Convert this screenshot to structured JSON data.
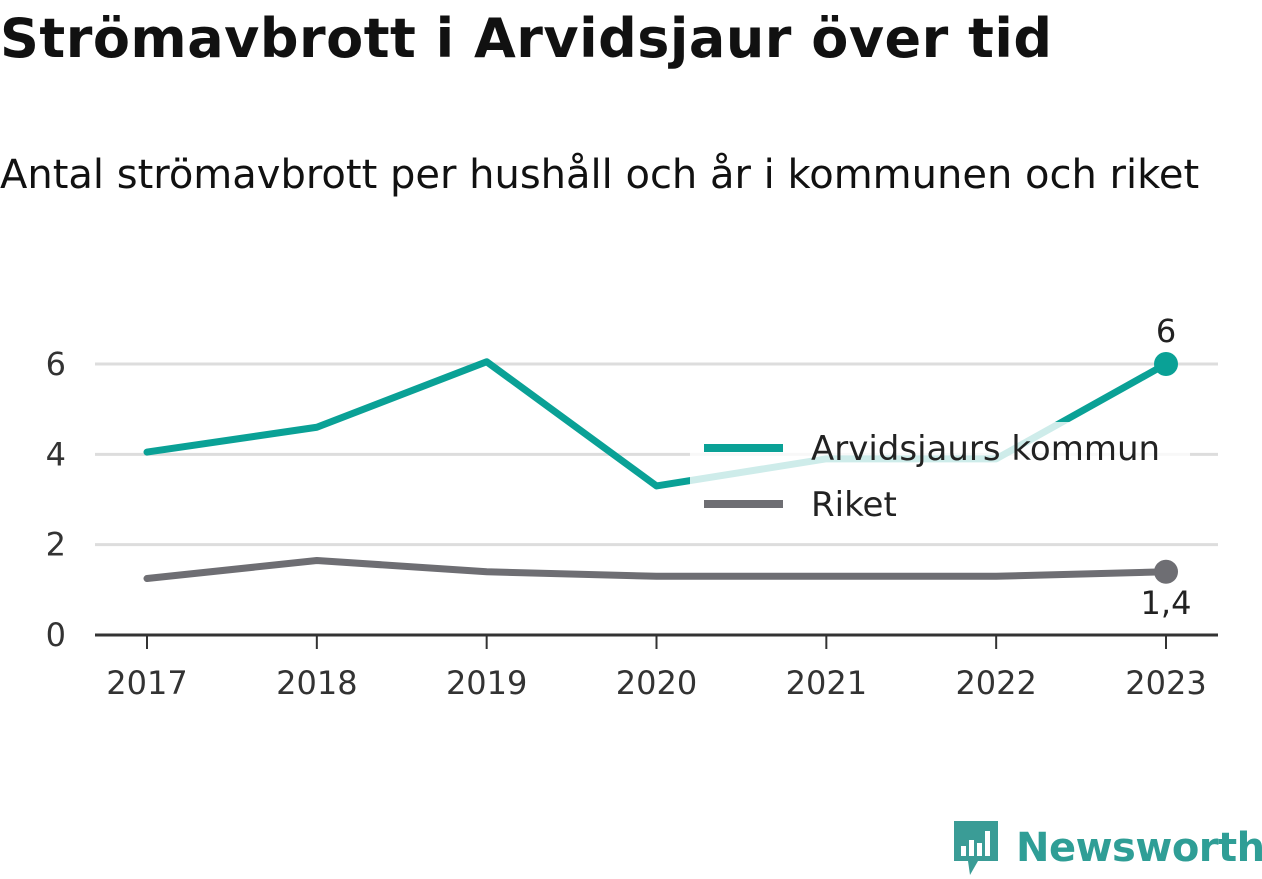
{
  "title": "Strömavbrott i Arvidsjaur över tid",
  "subtitle": "Antal strömavbrott per hushåll och år i kommunen och riket",
  "brand": {
    "name": "Newsworthy",
    "icon": "newsworthy-logo-icon",
    "color": "#3a9c96"
  },
  "colors": {
    "kommun": "#0aa196",
    "riket": "#6e6e73",
    "grid": "#dddddd",
    "axis": "#333333"
  },
  "chart_data": {
    "type": "line",
    "title": "Strömavbrott i Arvidsjaur över tid",
    "subtitle": "Antal strömavbrott per hushåll och år i kommunen och riket",
    "x": [
      "2017",
      "2018",
      "2019",
      "2020",
      "2021",
      "2022",
      "2023"
    ],
    "series": [
      {
        "name": "Arvidsjaurs kommun",
        "color": "#0aa196",
        "values": [
          4.05,
          4.6,
          6.05,
          3.3,
          3.9,
          3.9,
          6.0
        ],
        "end_label": "6"
      },
      {
        "name": "Riket",
        "color": "#6e6e73",
        "values": [
          1.25,
          1.65,
          1.4,
          1.3,
          1.3,
          1.3,
          1.4
        ],
        "end_label": "1,4"
      }
    ],
    "yticks": [
      {
        "value": 0,
        "label": "0"
      },
      {
        "value": 2,
        "label": "2"
      },
      {
        "value": 4,
        "label": "4"
      },
      {
        "value": 6,
        "label": "6"
      }
    ],
    "ylim": [
      0,
      6
    ],
    "grid": true,
    "legend": "right"
  }
}
